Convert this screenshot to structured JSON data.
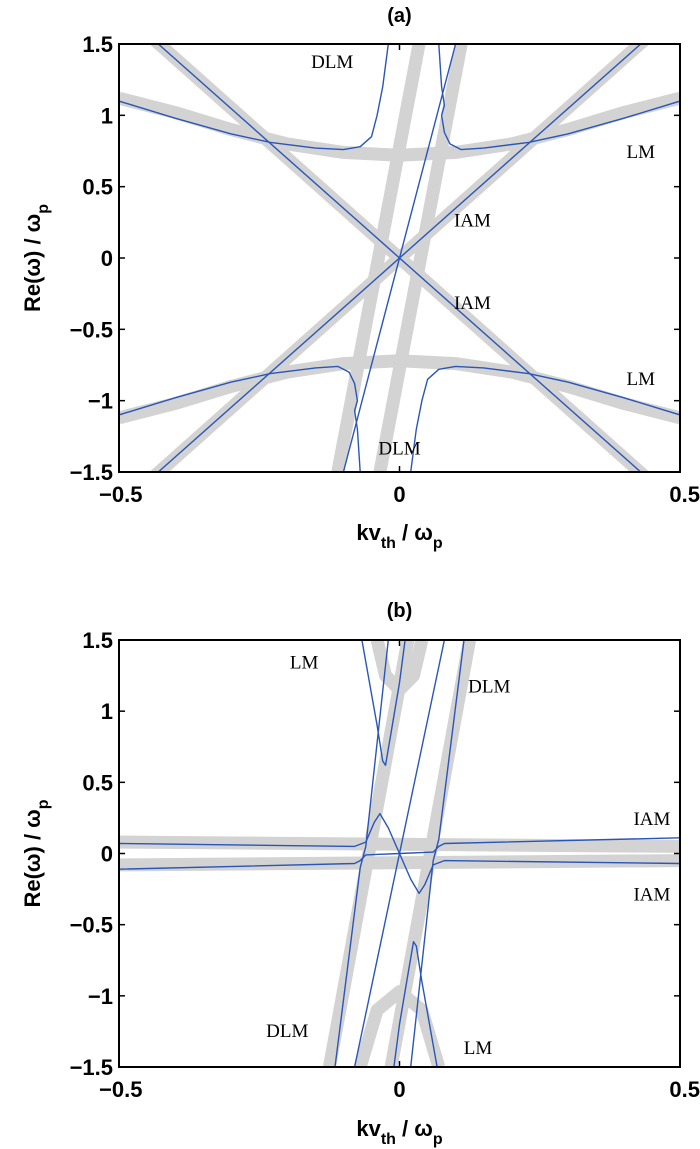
{
  "chart_data": [
    {
      "type": "line",
      "title": "(a)",
      "xlabel": "kv_th / ω_p",
      "ylabel": "Re(ω) / ω_p",
      "xlim": [
        -0.5,
        0.5
      ],
      "ylim": [
        -1.5,
        1.5
      ],
      "xticks": [
        "-0.5",
        "0",
        "0.5"
      ],
      "yticks": [
        "1.5",
        "1",
        "0.5",
        "0",
        "-0.5",
        "-1",
        "-1.5"
      ],
      "grid": false,
      "annotations": [
        {
          "text": "DLM",
          "x": -0.12,
          "y": 1.38
        },
        {
          "text": "LM",
          "x": 0.43,
          "y": 0.75
        },
        {
          "text": "IAM",
          "x": 0.13,
          "y": 0.27
        },
        {
          "text": "IAM",
          "x": 0.13,
          "y": -0.31
        },
        {
          "text": "LM",
          "x": 0.43,
          "y": -0.84
        },
        {
          "text": "DLM",
          "x": 0.0,
          "y": -1.33
        }
      ],
      "series": [
        {
          "name": "gray-IAM-pos",
          "style": "gray",
          "points": [
            [
              -0.5,
              -1.75
            ],
            [
              0.5,
              1.75
            ]
          ]
        },
        {
          "name": "gray-IAM-neg",
          "style": "gray",
          "points": [
            [
              -0.5,
              1.75
            ],
            [
              0.5,
              -1.75
            ]
          ]
        },
        {
          "name": "gray-LM-upper",
          "style": "gray",
          "points": [
            [
              -0.5,
              1.12
            ],
            [
              -0.4,
              1.02
            ],
            [
              -0.3,
              0.9
            ],
            [
              -0.2,
              0.8
            ],
            [
              -0.1,
              0.74
            ],
            [
              0,
              0.72
            ],
            [
              0.1,
              0.74
            ],
            [
              0.2,
              0.8
            ],
            [
              0.3,
              0.9
            ],
            [
              0.4,
              1.02
            ],
            [
              0.5,
              1.12
            ]
          ]
        },
        {
          "name": "gray-LM-lower",
          "style": "gray",
          "points": [
            [
              -0.5,
              -1.12
            ],
            [
              -0.4,
              -1.02
            ],
            [
              -0.3,
              -0.9
            ],
            [
              -0.2,
              -0.8
            ],
            [
              -0.1,
              -0.74
            ],
            [
              0,
              -0.72
            ],
            [
              0.1,
              -0.74
            ],
            [
              0.2,
              -0.8
            ],
            [
              0.3,
              -0.9
            ],
            [
              0.4,
              -1.02
            ],
            [
              0.5,
              -1.12
            ]
          ]
        },
        {
          "name": "gray-DLM-left",
          "style": "gray",
          "points": [
            [
              -0.11,
              -1.5
            ],
            [
              0.035,
              1.5
            ]
          ]
        },
        {
          "name": "gray-DLM-right",
          "style": "gray",
          "points": [
            [
              -0.035,
              -1.5
            ],
            [
              0.11,
              1.5
            ]
          ]
        },
        {
          "name": "blue-IAM-pos",
          "style": "blue",
          "points": [
            [
              -0.43,
              -1.5
            ],
            [
              0.43,
              1.5
            ]
          ]
        },
        {
          "name": "blue-IAM-neg",
          "style": "blue",
          "points": [
            [
              -0.43,
              1.5
            ],
            [
              0.43,
              -1.5
            ]
          ]
        },
        {
          "name": "blue-DLM-center",
          "style": "blue",
          "points": [
            [
              -0.1,
              -1.5
            ],
            [
              0.1,
              1.5
            ]
          ]
        },
        {
          "name": "blue-LM-upper-left",
          "style": "blue",
          "points": [
            [
              -0.5,
              1.1
            ],
            [
              -0.4,
              0.98
            ],
            [
              -0.3,
              0.87
            ],
            [
              -0.23,
              0.81
            ],
            [
              -0.15,
              0.77
            ],
            [
              -0.1,
              0.76
            ],
            [
              -0.07,
              0.78
            ],
            [
              -0.05,
              0.85
            ],
            [
              -0.04,
              1.0
            ],
            [
              -0.03,
              1.2
            ],
            [
              -0.02,
              1.5
            ]
          ]
        },
        {
          "name": "blue-LM-upper-right",
          "style": "blue",
          "points": [
            [
              0.5,
              1.1
            ],
            [
              0.4,
              0.98
            ],
            [
              0.3,
              0.87
            ],
            [
              0.23,
              0.81
            ],
            [
              0.15,
              0.77
            ],
            [
              0.11,
              0.76
            ],
            [
              0.09,
              0.8
            ],
            [
              0.08,
              0.88
            ],
            [
              0.075,
              1.0
            ],
            [
              0.08,
              1.07
            ],
            [
              0.075,
              1.2
            ],
            [
              0.07,
              1.5
            ]
          ]
        },
        {
          "name": "blue-LM-lower-left",
          "style": "blue",
          "points": [
            [
              -0.5,
              -1.1
            ],
            [
              -0.4,
              -0.98
            ],
            [
              -0.3,
              -0.87
            ],
            [
              -0.23,
              -0.81
            ],
            [
              -0.15,
              -0.77
            ],
            [
              -0.11,
              -0.76
            ],
            [
              -0.09,
              -0.8
            ],
            [
              -0.08,
              -0.88
            ],
            [
              -0.075,
              -1.0
            ],
            [
              -0.08,
              -1.07
            ],
            [
              -0.075,
              -1.2
            ],
            [
              -0.07,
              -1.5
            ]
          ]
        },
        {
          "name": "blue-LM-lower-right",
          "style": "blue",
          "points": [
            [
              0.5,
              -1.1
            ],
            [
              0.4,
              -0.98
            ],
            [
              0.3,
              -0.87
            ],
            [
              0.23,
              -0.81
            ],
            [
              0.15,
              -0.77
            ],
            [
              0.1,
              -0.76
            ],
            [
              0.07,
              -0.78
            ],
            [
              0.05,
              -0.85
            ],
            [
              0.04,
              -1.0
            ],
            [
              0.03,
              -1.2
            ],
            [
              0.02,
              -1.5
            ]
          ]
        }
      ]
    },
    {
      "type": "line",
      "title": "(b)",
      "xlabel": "kv_th / ω_p",
      "ylabel": "Re(ω) / ω_p",
      "xlim": [
        -0.5,
        0.5
      ],
      "ylim": [
        -1.5,
        1.5
      ],
      "xticks": [
        "-0.5",
        "0",
        "0.5"
      ],
      "yticks": [
        "1.5",
        "1",
        "0.5",
        "0",
        "-0.5",
        "-1",
        "-1.5"
      ],
      "grid": false,
      "annotations": [
        {
          "text": "LM",
          "x": -0.17,
          "y": 1.35
        },
        {
          "text": "DLM",
          "x": 0.16,
          "y": 1.18
        },
        {
          "text": "IAM",
          "x": 0.45,
          "y": 0.25
        },
        {
          "text": "IAM",
          "x": 0.45,
          "y": -0.28
        },
        {
          "text": "DLM",
          "x": -0.2,
          "y": -1.24
        },
        {
          "text": "LM",
          "x": 0.14,
          "y": -1.36
        }
      ],
      "series": [
        {
          "name": "gray-IAM-upper",
          "style": "gray",
          "points": [
            [
              -0.5,
              0.08
            ],
            [
              0.5,
              0.05
            ]
          ]
        },
        {
          "name": "gray-IAM-lower",
          "style": "gray",
          "points": [
            [
              -0.5,
              -0.08
            ],
            [
              0.5,
              -0.05
            ]
          ]
        },
        {
          "name": "gray-DLM-left",
          "style": "gray",
          "points": [
            [
              -0.125,
              -1.5
            ],
            [
              0.015,
              1.5
            ]
          ]
        },
        {
          "name": "gray-DLM-right",
          "style": "gray",
          "points": [
            [
              -0.015,
              -1.5
            ],
            [
              0.125,
              1.5
            ]
          ]
        },
        {
          "name": "gray-LM-top",
          "style": "gray",
          "points": [
            [
              -0.04,
              1.5
            ],
            [
              -0.025,
              1.25
            ],
            [
              0,
              1.15
            ],
            [
              0.025,
              1.25
            ],
            [
              0.04,
              1.5
            ]
          ]
        },
        {
          "name": "gray-LM-bottom",
          "style": "gray",
          "points": [
            [
              -0.07,
              -1.5
            ],
            [
              -0.04,
              -1.1
            ],
            [
              0,
              -0.97
            ],
            [
              0.04,
              -1.1
            ],
            [
              0.07,
              -1.5
            ]
          ]
        },
        {
          "name": "blue-IAM-upper",
          "style": "blue",
          "points": [
            [
              -0.5,
              0.07
            ],
            [
              -0.08,
              0.05
            ],
            [
              -0.06,
              0.08
            ],
            [
              -0.045,
              0.22
            ],
            [
              -0.035,
              0.28
            ],
            [
              -0.02,
              0.18
            ],
            [
              0.0,
              0.0
            ],
            [
              0.06,
              0.01
            ],
            [
              0.07,
              0.05
            ],
            [
              0.08,
              0.07
            ],
            [
              0.5,
              0.11
            ]
          ]
        },
        {
          "name": "blue-IAM-lower",
          "style": "blue",
          "points": [
            [
              -0.5,
              -0.11
            ],
            [
              -0.08,
              -0.07
            ],
            [
              -0.07,
              -0.05
            ],
            [
              -0.06,
              -0.01
            ],
            [
              0.0,
              0.0
            ],
            [
              0.02,
              -0.18
            ],
            [
              0.035,
              -0.28
            ],
            [
              0.045,
              -0.22
            ],
            [
              0.06,
              -0.08
            ],
            [
              0.08,
              -0.05
            ],
            [
              0.5,
              -0.07
            ]
          ]
        },
        {
          "name": "blue-DLM-left",
          "style": "blue",
          "points": [
            [
              -0.115,
              -1.5
            ],
            [
              -0.07,
              -0.1
            ],
            [
              -0.06,
              0.05
            ],
            [
              -0.02,
              1.5
            ]
          ]
        },
        {
          "name": "blue-DLM-right",
          "style": "blue",
          "points": [
            [
              0.02,
              -1.5
            ],
            [
              0.06,
              -0.05
            ],
            [
              0.07,
              0.1
            ],
            [
              0.115,
              1.5
            ]
          ]
        },
        {
          "name": "blue-center",
          "style": "blue",
          "points": [
            [
              -0.08,
              -1.5
            ],
            [
              0.08,
              1.5
            ]
          ]
        },
        {
          "name": "blue-LM-top",
          "style": "blue",
          "points": [
            [
              -0.067,
              1.5
            ],
            [
              -0.04,
              0.9
            ],
            [
              -0.03,
              0.65
            ],
            [
              -0.025,
              0.62
            ],
            [
              -0.015,
              0.85
            ],
            [
              0.0,
              1.2
            ],
            [
              0.01,
              1.5
            ]
          ]
        },
        {
          "name": "blue-LM-bottom",
          "style": "blue",
          "points": [
            [
              -0.01,
              -1.5
            ],
            [
              0.0,
              -1.2
            ],
            [
              0.015,
              -0.85
            ],
            [
              0.025,
              -0.62
            ],
            [
              0.03,
              -0.65
            ],
            [
              0.04,
              -0.9
            ],
            [
              0.067,
              -1.5
            ]
          ]
        }
      ]
    }
  ],
  "colors": {
    "gray_band": "#d3d3d3",
    "blue_line": "#2a56b8",
    "axis": "#000000"
  }
}
